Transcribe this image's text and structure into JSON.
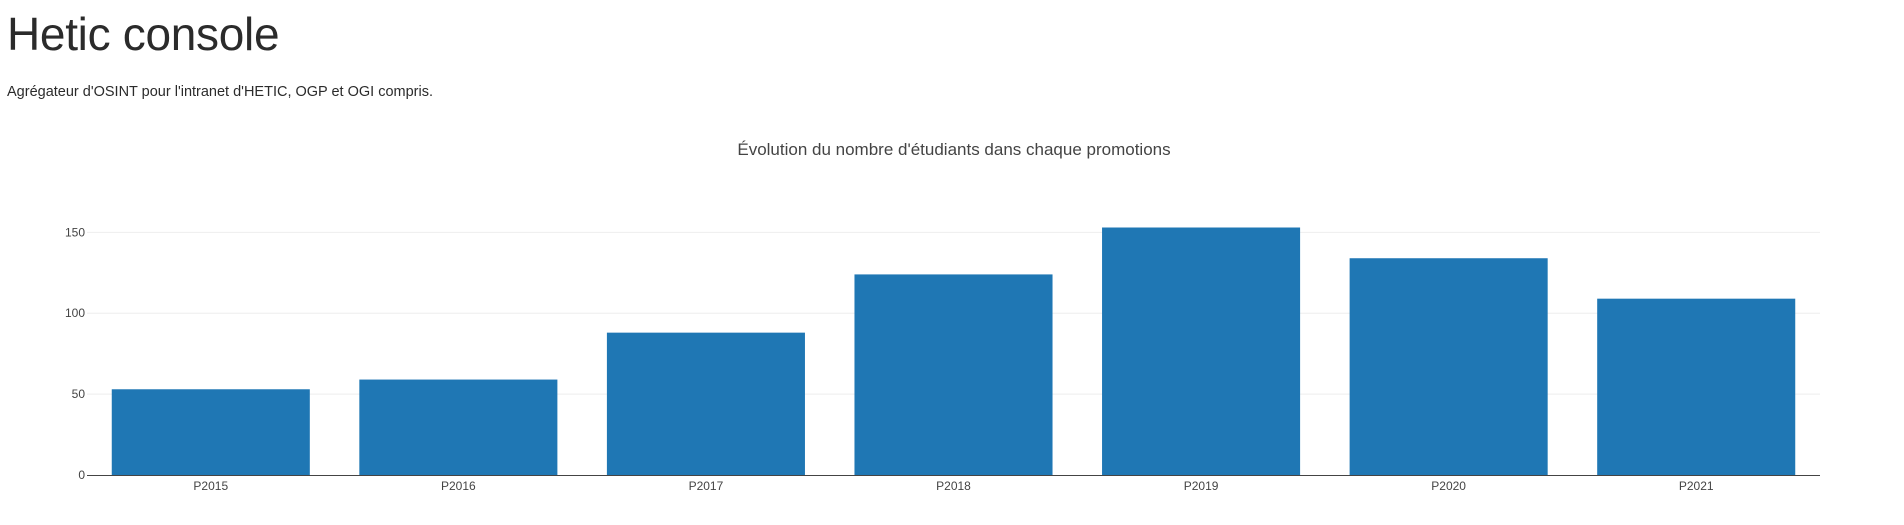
{
  "page": {
    "title": "Hetic console",
    "subtitle": "Agrégateur d'OSINT pour l'intranet d'HETIC, OGP et OGI compris."
  },
  "colors": {
    "bar": "#1f77b4",
    "grid": "#eeeeee",
    "axis_line": "#444444",
    "text": "#444444"
  },
  "chart_data": {
    "type": "bar",
    "title": "Évolution du nombre d'étudiants dans chaque promotions",
    "xlabel": "",
    "ylabel": "",
    "categories": [
      "P2015",
      "P2016",
      "P2017",
      "P2018",
      "P2019",
      "P2020",
      "P2021"
    ],
    "values": [
      53,
      59,
      88,
      124,
      153,
      134,
      109
    ],
    "ylim": [
      0,
      170
    ],
    "yticks": [
      0,
      50,
      100,
      150
    ],
    "grid": true,
    "legend": "none"
  }
}
